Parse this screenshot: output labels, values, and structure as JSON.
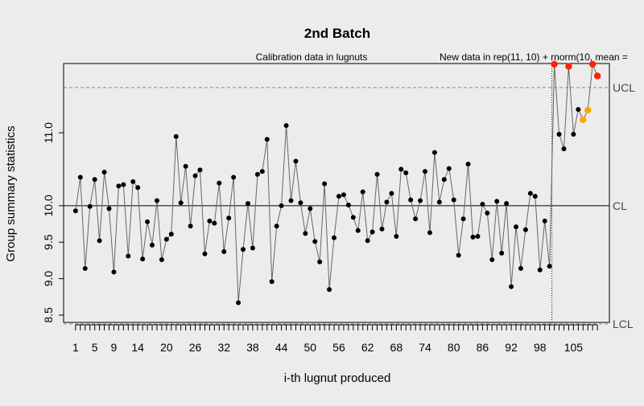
{
  "chart_data": {
    "type": "line",
    "title": "2nd Batch",
    "xlabel": "i-th lugnut produced",
    "ylabel": "Group summary statistics",
    "calibration_label": "Calibration data in lugnuts",
    "new_data_label": "New data in rep(11, 10) + rnorm(10, mean =",
    "xlim": [
      -1.5,
      112.5
    ],
    "ylim": [
      8.4,
      11.95
    ],
    "x_tick_labels": [
      "1",
      "5",
      "9",
      "14",
      "20",
      "26",
      "32",
      "38",
      "44",
      "50",
      "56",
      "62",
      "68",
      "74",
      "80",
      "86",
      "92",
      "98",
      "105"
    ],
    "x_tick_positions": [
      1,
      5,
      9,
      14,
      20,
      26,
      32,
      38,
      44,
      50,
      56,
      62,
      68,
      74,
      80,
      86,
      92,
      98,
      105
    ],
    "y_ticks": [
      8.5,
      9.0,
      9.5,
      10.0,
      11.0
    ],
    "y_tick_labels": [
      "8.5",
      "9.0",
      "9.5",
      "10.0",
      "11.0"
    ],
    "control_limits": {
      "ucl": {
        "label": "UCL",
        "value": 11.62
      },
      "cl": {
        "label": "CL",
        "value": 10.0
      },
      "lcl": {
        "label": "LCL",
        "value": 8.38
      }
    },
    "calibration_end": 100,
    "calibration_values": [
      9.93,
      10.39,
      9.14,
      9.99,
      10.36,
      9.52,
      10.46,
      9.96,
      9.09,
      10.27,
      10.29,
      9.31,
      10.33,
      10.25,
      9.27,
      9.78,
      9.46,
      10.07,
      9.26,
      9.54,
      9.61,
      10.95,
      10.04,
      10.54,
      9.72,
      10.41,
      10.49,
      9.34,
      9.79,
      9.76,
      10.31,
      9.37,
      9.83,
      10.39,
      8.67,
      9.4,
      10.03,
      9.42,
      10.43,
      10.47,
      10.91,
      8.96,
      9.72,
      10.0,
      11.1,
      10.07,
      10.61,
      10.04,
      9.62,
      9.96,
      9.51,
      9.23,
      10.3,
      8.85,
      9.56,
      10.13,
      10.15,
      10.01,
      9.84,
      9.66,
      10.19,
      9.52,
      9.64,
      10.43,
      9.68,
      10.05,
      10.17,
      9.58,
      10.5,
      10.45,
      10.08,
      9.82,
      10.07,
      10.47,
      9.63,
      10.73,
      10.05,
      10.36,
      10.51,
      10.08,
      9.32,
      9.82,
      10.57,
      9.57,
      9.58,
      10.02,
      9.9,
      9.26,
      10.06,
      9.35,
      10.03,
      8.89,
      9.71,
      9.14,
      9.67,
      10.17,
      10.13,
      9.12,
      9.79,
      9.17
    ],
    "new_values": [
      11.94,
      10.98,
      10.78,
      11.91,
      10.98,
      11.32,
      11.18,
      11.31,
      11.94,
      11.78
    ],
    "new_value_colors": [
      "#ff2200",
      "#000000",
      "#000000",
      "#ff2200",
      "#000000",
      "#000000",
      "#ffa500",
      "#ffa500",
      "#ff2200",
      "#ff2200"
    ],
    "colors": {
      "background": "#ececec",
      "line": "#666666",
      "point": "#000000",
      "violation": "#ff2200",
      "warning": "#ffa500"
    }
  }
}
